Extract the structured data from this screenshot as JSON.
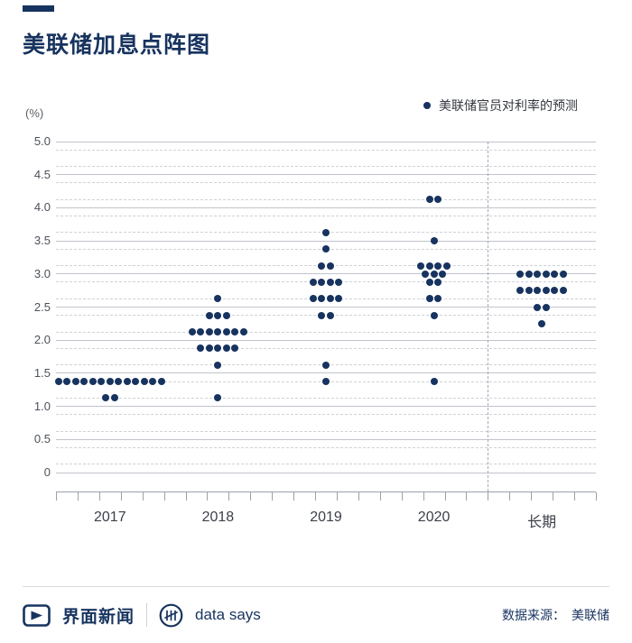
{
  "page": {
    "background": "#ffffff"
  },
  "theme": {
    "navy": "#17335f",
    "grid_solid": "#c0c4cb",
    "grid_dashed": "#ced2d8",
    "axis": "#9aa1ab",
    "footer_divider": "#d9dbe0"
  },
  "header": {
    "title": "美联储加息点阵图"
  },
  "chart_data": {
    "type": "scatter",
    "variant": "fed-dot-plot",
    "title": "美联储加息点阵图",
    "unit_label": "(%)",
    "legend": {
      "label": "美联储官员对利率的预测",
      "position": "top-right"
    },
    "ylim": [
      0,
      5
    ],
    "ytick_step": 0.5,
    "ytick_labels": [
      "0",
      "0.5",
      "1.0",
      "1.5",
      "2.0",
      "2.5",
      "3.0",
      "3.5",
      "4.0",
      "4.5",
      "5.0"
    ],
    "grid": {
      "solid_step": 0.5,
      "dashed_offsets": [
        0.125,
        0.375,
        0.625,
        0.875
      ]
    },
    "categories": [
      "2017",
      "2018",
      "2019",
      "2020",
      "长期"
    ],
    "separator_after_category": "2020",
    "dot_color": "#17335f",
    "series": [
      {
        "category": "2017",
        "dots": [
          {
            "rate": 1.375,
            "count": 13
          },
          {
            "rate": 1.125,
            "count": 2
          }
        ]
      },
      {
        "category": "2018",
        "dots": [
          {
            "rate": 2.625,
            "count": 1
          },
          {
            "rate": 2.375,
            "count": 3
          },
          {
            "rate": 2.125,
            "count": 7
          },
          {
            "rate": 1.875,
            "count": 5
          },
          {
            "rate": 1.625,
            "count": 1
          },
          {
            "rate": 1.125,
            "count": 1
          }
        ]
      },
      {
        "category": "2019",
        "dots": [
          {
            "rate": 3.625,
            "count": 1
          },
          {
            "rate": 3.375,
            "count": 1
          },
          {
            "rate": 3.125,
            "count": 2
          },
          {
            "rate": 2.875,
            "count": 4
          },
          {
            "rate": 2.625,
            "count": 4
          },
          {
            "rate": 2.375,
            "count": 2
          },
          {
            "rate": 1.625,
            "count": 1
          },
          {
            "rate": 1.375,
            "count": 1
          }
        ]
      },
      {
        "category": "2020",
        "dots": [
          {
            "rate": 4.125,
            "count": 2
          },
          {
            "rate": 3.5,
            "count": 1
          },
          {
            "rate": 3.125,
            "count": 4
          },
          {
            "rate": 3.0,
            "count": 3
          },
          {
            "rate": 2.875,
            "count": 2
          },
          {
            "rate": 2.625,
            "count": 2
          },
          {
            "rate": 2.375,
            "count": 1
          },
          {
            "rate": 1.375,
            "count": 1
          }
        ]
      },
      {
        "category": "长期",
        "dots": [
          {
            "rate": 3.0,
            "count": 6
          },
          {
            "rate": 2.75,
            "count": 6
          },
          {
            "rate": 2.5,
            "count": 2
          },
          {
            "rate": 2.25,
            "count": 1
          }
        ]
      }
    ]
  },
  "footer": {
    "brand_name": "界面新闻",
    "product_name": "data says",
    "source_label": "数据来源：",
    "source_value": "美联储"
  }
}
